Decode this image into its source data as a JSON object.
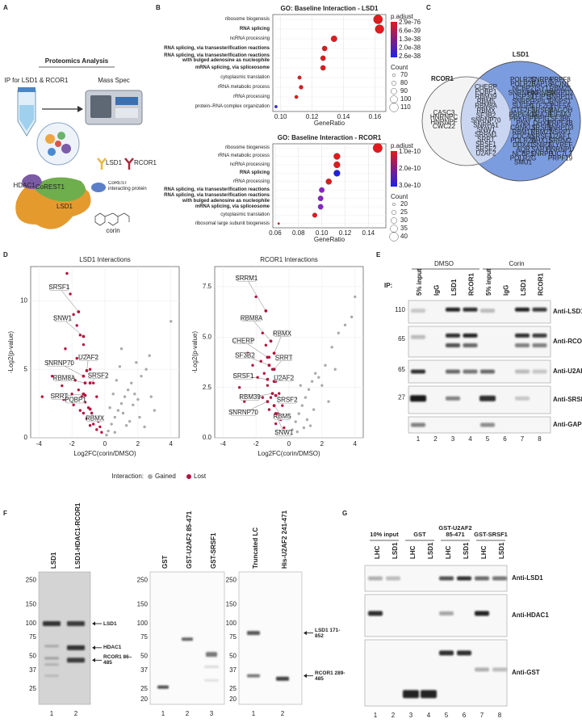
{
  "panel_labels": [
    "A",
    "B",
    "C",
    "D",
    "E",
    "F",
    "G"
  ],
  "panel_a": {
    "title": "Proteomics Analysis",
    "ip": "IP for LSD1 & RCOR1",
    "instrument": "Mass Spec",
    "antibodies": [
      "LSD1",
      "RCOR1"
    ],
    "bead_legend": "CoREST interacting protein",
    "compound": "corin",
    "complex": [
      "HDAC1",
      "CoREST1",
      "LSD1"
    ]
  },
  "chart_data": [
    {
      "type": "dot",
      "title": "GO: Baseline Interaction - LSD1",
      "categories": [
        "ribosome biogenesis",
        "RNA splicing",
        "ncRNA processing",
        "RNA splicing, via transesterification reactions",
        "RNA splicing, via transesterification reactions with bulged adenosine as nucleophile",
        "mRNA splicing, via spliceosome",
        "cytoplasmic translation",
        "rRNA metabolic process",
        "rRNA processing",
        "protein–RNA complex organization"
      ],
      "bold": [
        false,
        true,
        false,
        true,
        true,
        true,
        false,
        false,
        false,
        false
      ],
      "values": [
        0.162,
        0.163,
        0.134,
        0.128,
        0.127,
        0.127,
        0.112,
        0.113,
        0.11,
        0.097
      ],
      "sizes": [
        112,
        110,
        92,
        85,
        85,
        85,
        75,
        78,
        74,
        70
      ],
      "colors": [
        "#e3191c",
        "#e3191c",
        "#e3191c",
        "#e3191c",
        "#e3191c",
        "#e3191c",
        "#e3191c",
        "#e3191c",
        "#e3191c",
        "#3b2fd6"
      ],
      "xlim": [
        0.095,
        0.167
      ],
      "xticks": [
        {
          "value": 0.1,
          "label": "0.10"
        },
        0.12,
        0.14,
        0.16
      ],
      "xlabel": "GeneRatio",
      "color_legend": {
        "title": "p.adjust",
        "labels": [
          "2.9e-76",
          "6.6e-39",
          "1.3e-38",
          "2.0e-38",
          "2.6e-38"
        ],
        "colors": [
          "#e3191c",
          "#2020e8"
        ]
      },
      "size_legend": {
        "title": "Count",
        "values": [
          70,
          80,
          90,
          100,
          110
        ]
      }
    },
    {
      "type": "dot",
      "title": "GO: Baseline Interaction - RCOR1",
      "categories": [
        "ribosome biogenesis",
        "rRNA metabolic process",
        "ncRNA processing",
        "RNA splicing",
        "rRNA processing",
        "RNA splicing, via transesterification reactions",
        "RNA splicing, via transesterification reactions with bulged adenosine as nucleophile",
        "mRNA splicing, via spliceosome",
        "cytoplasmic translation",
        "ribosomal large subunit biogenesis"
      ],
      "bold": [
        false,
        false,
        false,
        true,
        false,
        true,
        true,
        true,
        false,
        false
      ],
      "values": [
        0.148,
        0.113,
        0.113,
        0.113,
        0.106,
        0.1,
        0.099,
        0.099,
        0.094,
        0.063
      ],
      "sizes": [
        42,
        32,
        32,
        32,
        30,
        28,
        28,
        28,
        26,
        17
      ],
      "colors": [
        "#e3191c",
        "#e3191c",
        "#e3191c",
        "#2020e8",
        "#e3191c",
        "#8a23c8",
        "#8a23c8",
        "#8a23c8",
        "#e3191c",
        "#e3191c"
      ],
      "xlim": [
        0.058,
        0.155
      ],
      "xticks": [
        0.06,
        0.08,
        {
          "value": 0.1,
          "label": "0.10"
        },
        0.12,
        0.14
      ],
      "xlabel": "GeneRatio",
      "color_legend": {
        "title": "p.adjust",
        "labels": [
          "1.0e-10",
          "2.0e-10",
          "3.0e-10"
        ],
        "colors": [
          "#e3191c",
          "#2020e8"
        ]
      },
      "size_legend": {
        "title": "Count",
        "values": [
          20,
          25,
          30,
          35,
          40
        ]
      }
    },
    {
      "type": "scatter",
      "title": "LSD1 Interactions",
      "xlabel": "Log2FC(corin/DMSO)",
      "ylabel": "-Log2(p-value)",
      "xlim": [
        -4.5,
        4.5
      ],
      "ylim": [
        0,
        12.5
      ],
      "xticks": [
        -4,
        -2,
        0,
        2,
        4
      ],
      "yticks": [
        0,
        5,
        10
      ],
      "series": [
        {
          "color": "#aaaaaa",
          "x": [
            0.2,
            0.4,
            0.6,
            0.8,
            1.0,
            1.2,
            1.4,
            1.6,
            1.8,
            2.0,
            2.2,
            2.5,
            2.8,
            3.0,
            0.3,
            0.5,
            0.7,
            0.9,
            1.1,
            1.3,
            1.5,
            1.7,
            2.1,
            2.4,
            2.7,
            0.1,
            0.6,
            1.0,
            1.9,
            4.0
          ],
          "values": [
            0.5,
            1.0,
            1.5,
            2.0,
            2.5,
            3.0,
            3.5,
            4.0,
            3.2,
            2.8,
            4.5,
            5.0,
            3.0,
            2.0,
            2.2,
            3.2,
            4.2,
            5.2,
            1.8,
            0.9,
            1.2,
            2.4,
            1.5,
            0.8,
            6.0,
            0.2,
            0.4,
            6.5,
            5.5,
            8.5
          ]
        },
        {
          "color": "#b5123e",
          "x": [
            -2.3,
            -2.1,
            -1.9,
            -1.7,
            -1.5,
            -1.3,
            -1.1,
            -0.9,
            -0.7,
            -0.5,
            -3.2,
            -2.8,
            -2.6,
            -2.4,
            -1.8,
            -1.6,
            -1.4,
            -1.2,
            -1.0,
            -0.8,
            -0.6,
            -0.4,
            -0.3,
            -2.0,
            -1.5,
            -1.1,
            -0.7,
            -3.8,
            -2.5,
            -1.9,
            -1.3,
            -0.9,
            -0.5,
            -0.2,
            -1.7
          ],
          "values": [
            12.0,
            10.5,
            9.0,
            8.2,
            7.5,
            6.8,
            6.0,
            5.0,
            4.0,
            3.0,
            4.5,
            5.5,
            3.8,
            6.5,
            4.2,
            3.5,
            3.0,
            2.6,
            2.2,
            1.8,
            1.5,
            1.2,
            0.8,
            3.2,
            2.0,
            1.4,
            1.0,
            3.0,
            2.8,
            2.4,
            1.8,
            0.9,
            0.6,
            0.4,
            5.8
          ]
        }
      ],
      "annotations": [
        {
          "label": "SRSF1",
          "x": -1.6,
          "y": 9.2
        },
        {
          "label": "SNW1",
          "x": -1.3,
          "y": 7.4
        },
        {
          "label": "SNRNP70",
          "x": -1.3,
          "y": 4.5
        },
        {
          "label": "U2AF2",
          "x": -1.1,
          "y": 4.9
        },
        {
          "label": "RBM8A",
          "x": -1.2,
          "y": 4.0
        },
        {
          "label": "SRSF2",
          "x": -0.9,
          "y": 4.0
        },
        {
          "label": "SRRT",
          "x": -1.3,
          "y": 3.2
        },
        {
          "label": "PQBP1",
          "x": -1.2,
          "y": 3.1
        },
        {
          "label": "RBMX",
          "x": -0.9,
          "y": 2.1
        }
      ]
    },
    {
      "type": "scatter",
      "title": "RCOR1 Interactions",
      "xlabel": "Log2FC(corin/DMSO)",
      "ylabel": "-Log2(p-value)",
      "xlim": [
        -4.5,
        4.5
      ],
      "ylim": [
        0,
        8.5
      ],
      "xticks": [
        -4,
        -2,
        0,
        2,
        4
      ],
      "yticks": [
        {
          "value": 0,
          "label": "0.0"
        },
        2.5,
        {
          "value": 5,
          "label": "5.0"
        },
        7.5
      ],
      "legend_title": "Interaction:",
      "series": [
        {
          "name": "Gained",
          "color": "#aaaaaa",
          "x": [
            0.2,
            0.4,
            0.6,
            0.8,
            1.0,
            1.2,
            1.4,
            1.6,
            1.8,
            2.0,
            2.2,
            2.6,
            3.0,
            3.4,
            3.8,
            0.3,
            0.7,
            1.1,
            1.5,
            2.4,
            2.8,
            0.5,
            0.9,
            1.3,
            4.0
          ],
          "values": [
            0.4,
            0.8,
            1.2,
            1.6,
            2.0,
            2.4,
            2.8,
            3.2,
            3.0,
            2.6,
            3.6,
            4.5,
            5.2,
            5.6,
            6.0,
            1.9,
            2.6,
            0.9,
            1.4,
            1.8,
            3.4,
            0.3,
            0.5,
            0.6,
            7.0
          ]
        },
        {
          "name": "Lost",
          "color": "#b5123e",
          "x": [
            -2.0,
            -1.8,
            -1.6,
            -1.4,
            -1.2,
            -1.0,
            -0.8,
            -0.6,
            -0.4,
            -2.5,
            -2.2,
            -1.9,
            -1.7,
            -1.5,
            -1.3,
            -1.1,
            -0.9,
            -0.7,
            -0.5,
            -0.3,
            -3.0,
            -2.7,
            -1.6,
            -1.2,
            -0.8
          ],
          "values": [
            7.0,
            6.0,
            5.2,
            4.6,
            4.0,
            3.4,
            2.8,
            2.2,
            1.6,
            4.2,
            3.6,
            3.0,
            3.8,
            3.2,
            2.6,
            2.0,
            1.6,
            1.2,
            0.9,
            0.5,
            2.5,
            1.8,
            2.0,
            1.4,
            0.7
          ]
        }
      ],
      "annotations": [
        {
          "label": "SRRM1",
          "x": -1.4,
          "y": 6.3
        },
        {
          "label": "RBM8A",
          "x": -1.1,
          "y": 4.8
        },
        {
          "label": "CHERP",
          "x": -1.3,
          "y": 4.0
        },
        {
          "label": "RBMX",
          "x": -0.9,
          "y": 4.2
        },
        {
          "label": "SF3B2",
          "x": -1.2,
          "y": 3.6
        },
        {
          "label": "SRRT",
          "x": -0.9,
          "y": 3.4
        },
        {
          "label": "SRSF1",
          "x": -1.3,
          "y": 2.9
        },
        {
          "label": "U2AF2",
          "x": -0.9,
          "y": 2.8
        },
        {
          "label": "RBM39",
          "x": -1.0,
          "y": 2.2
        },
        {
          "label": "SRSF2",
          "x": -0.8,
          "y": 2.1
        },
        {
          "label": "SNRNP70",
          "x": -1.3,
          "y": 1.8
        },
        {
          "label": "RBM5",
          "x": -0.9,
          "y": 1.6
        },
        {
          "label": "SNW1",
          "x": -0.8,
          "y": 1.2
        }
      ]
    }
  ],
  "panel_c": {
    "lsd1": "LSD1",
    "rcor1": "RCOR1",
    "rcor1_only": [
      "CASC3",
      "HNRNPC",
      "HNRNPF",
      "CWC22"
    ],
    "shared": [
      "CHERP",
      "PQBP1",
      "RBM39",
      "RBM5",
      "RBM8A",
      "RBMX",
      "SF3B2",
      "SNRNP70",
      "SNRPA1",
      "SNW1",
      "SRRM1",
      "SRRT",
      "SRSF1",
      "SRSF2",
      "U2AF2"
    ],
    "lsd1_only": [
      [
        "POLR2C",
        "POLR2B",
        "NCBP2",
        "SNRNP40",
        "USP39",
        "SNRPF",
        "SUGP1",
        "GTF2F2",
        "PRPF40A",
        "PRKRIP1",
        "PNN",
        "CRNKL1",
        "RBM17",
        "CDC40",
        "POLR2A",
        "DDX41",
        "AQR",
        "NCBP1",
        "POLR2G",
        "SMU1"
      ],
      [
        "SNRPA",
        "SAP18",
        "ISY1",
        "HNRNPM",
        "TFIP11",
        "PPIL1",
        "GTF2F1",
        "SRSF3",
        "TRA2B",
        "PPIG",
        "DHX8",
        "SRSF6",
        "RBM22",
        "SRSF4",
        "DHX15",
        "SNIP1",
        "SART1",
        "SNRPB"
      ],
      [
        "PRPF8",
        "ACIN1",
        "RBM25",
        "SNRPD2",
        "SNRPD1",
        "RNPS1",
        "PHF5A",
        "MAGOH",
        "EIF4A3",
        "SF3B6",
        "PRPF4B",
        "SNRPD3",
        "NSRP1",
        "U2AF1",
        "SRRM2",
        "ALYREF",
        "HNRNPU",
        "LUC7L3",
        "PRPF19"
      ]
    ]
  },
  "panel_e": {
    "treatments": [
      "DMSO",
      "Corin"
    ],
    "ip_label": "IP:",
    "lanes": [
      "5% input",
      "IgG",
      "LSD1",
      "RCOR1",
      "5% input",
      "IgG",
      "LSD1",
      "RCOR1"
    ],
    "blots": [
      {
        "antibody": "Anti-LSD1",
        "mw": 110
      },
      {
        "antibody": "Anti-RCOR1",
        "mw": 65
      },
      {
        "antibody": "Anti-U2AF2",
        "mw": 65
      },
      {
        "antibody": "Anti-SRSF1",
        "mw": 27
      },
      {
        "antibody": "Anti-GAPDH"
      }
    ],
    "lane_numbers": [
      1,
      2,
      3,
      4,
      5,
      6,
      7,
      8
    ]
  },
  "panel_f": {
    "gels": [
      {
        "lanes": [
          "LSD1",
          "LSD1-HDAC1-RCOR1"
        ],
        "markers": [
          250,
          150,
          100,
          75,
          50,
          37,
          25
        ],
        "arrows": [
          "LSD1",
          "HDAC1",
          "RCOR1 86–485"
        ],
        "lane_numbers": [
          1,
          2
        ]
      },
      {
        "lanes": [
          "GST",
          "GST-U2AF2 85-471",
          "GST-SRSF1"
        ],
        "markers": [
          250,
          150,
          100,
          75,
          50,
          37,
          25,
          20
        ],
        "lane_numbers": [
          1,
          2,
          3
        ]
      },
      {
        "lanes": [
          "Truncated LC",
          "His-U2AF2 241-471"
        ],
        "markers": [
          250,
          150,
          100,
          75,
          50,
          37,
          25,
          20
        ],
        "arrows": [
          "LSD1 171-852",
          "RCOR1 289-485"
        ],
        "lane_numbers": [
          1,
          2
        ]
      }
    ]
  },
  "panel_g": {
    "groups": [
      "10% input",
      "GST",
      "GST-U2AF2 85-471",
      "GST-SRSF1"
    ],
    "lanes": [
      "LHC",
      "LSD1",
      "LHC",
      "LSD1",
      "LHC",
      "LSD1",
      "LHC",
      "LSD1"
    ],
    "blots": [
      "Anti-LSD1",
      "Anti-HDAC1",
      "Anti-GST"
    ],
    "lane_numbers": [
      1,
      2,
      3,
      4,
      5,
      6,
      7,
      8
    ]
  }
}
